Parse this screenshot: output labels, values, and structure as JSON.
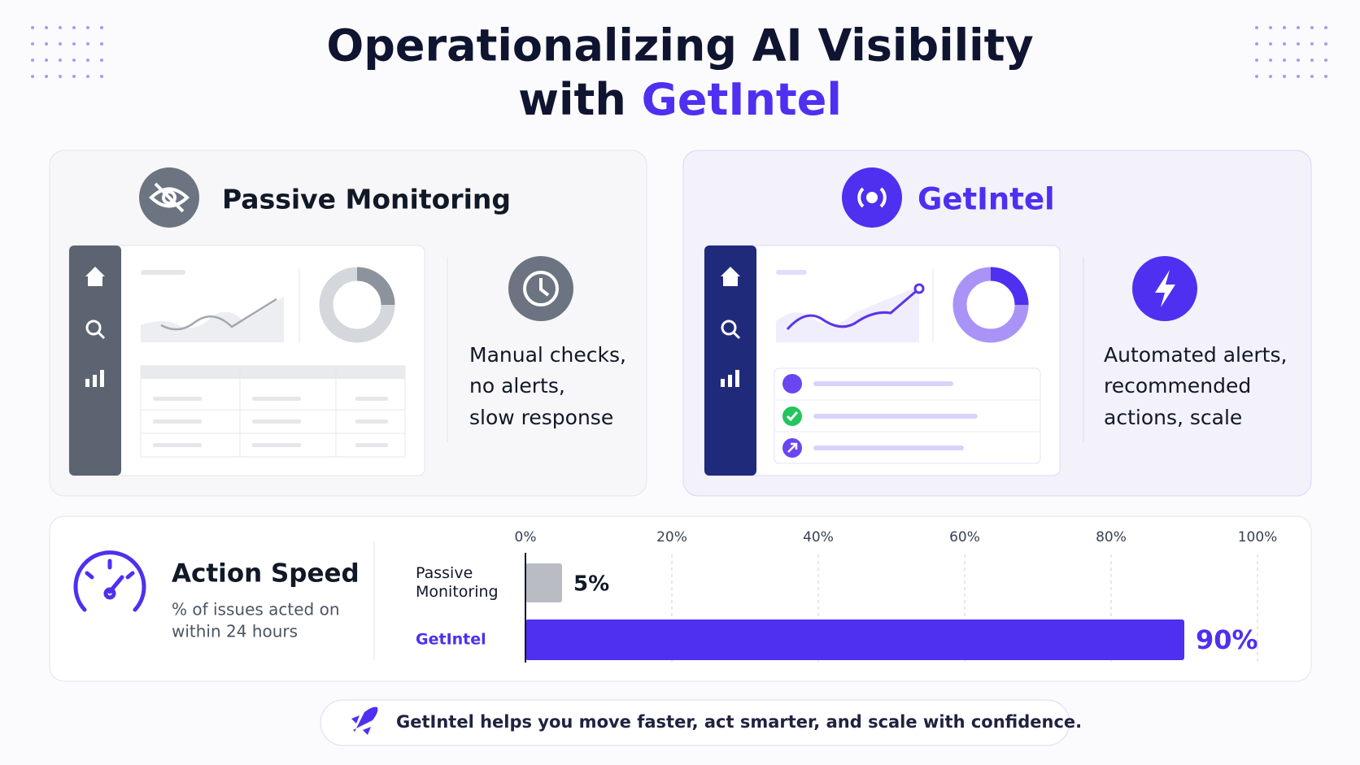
{
  "header": {
    "title_line1": "Operationalizing AI Visibility",
    "title_line2_prefix": "with",
    "title_line2_brand": "GetIntel"
  },
  "panels": [
    {
      "title": "Passive Monitoring",
      "description": [
        "Manual checks,",
        "no alerts,",
        "slow response"
      ]
    },
    {
      "title": "GetIntel",
      "description": [
        "Automated alerts,",
        "recommended",
        "actions, scale"
      ]
    }
  ],
  "speed": {
    "title": "Action Speed",
    "subtitle": [
      "% of issues acted on",
      "within 24 hours"
    ]
  },
  "chart_data": {
    "type": "bar",
    "orientation": "horizontal",
    "categories": [
      "Passive Monitoring",
      "GetIntel"
    ],
    "values": [
      5,
      90
    ],
    "value_labels": [
      "5%",
      "90%"
    ],
    "colors": [
      "#b9bcc3",
      "#4f2ff0"
    ],
    "label_colors": [
      "#111827",
      "#4f2ff0"
    ],
    "xlim": [
      0,
      100
    ],
    "xticks": [
      {
        "value": 0,
        "label": "0%"
      },
      {
        "value": 20,
        "label": "20%"
      },
      {
        "value": 40,
        "label": "40%"
      },
      {
        "value": 60,
        "label": "60%"
      },
      {
        "value": 80,
        "label": "80%"
      },
      {
        "value": 100,
        "label": "100%"
      }
    ],
    "grid": true
  },
  "footer": {
    "text": "GetIntel helps you move faster, act smarter, and scale with confidence."
  }
}
